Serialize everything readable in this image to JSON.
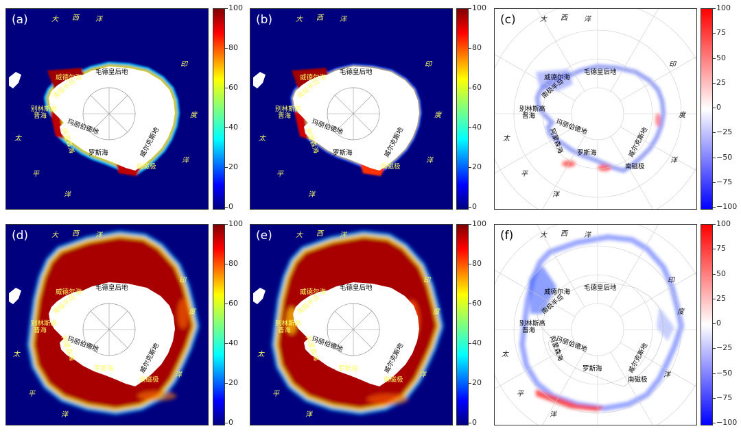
{
  "panels": {
    "a": {
      "label": "(a)",
      "kind": "conc",
      "season": "summer"
    },
    "b": {
      "label": "(b)",
      "kind": "conc",
      "season": "summer"
    },
    "c": {
      "label": "(c)",
      "kind": "diff",
      "season": "summer"
    },
    "d": {
      "label": "(d)",
      "kind": "conc",
      "season": "winter"
    },
    "e": {
      "label": "(e)",
      "kind": "conc",
      "season": "winter"
    },
    "f": {
      "label": "(f)",
      "kind": "diff",
      "season": "winter"
    }
  },
  "place_labels": {
    "maud_land": "毛德皇后地",
    "weddell_sea": "威德尔海",
    "antarctic_peninsula": "南极半岛",
    "bellingshausen_sea": "别林斯高\n晋海",
    "bellingshausen_sea_a": "别林斯高",
    "bellingshausen_sea_b": "晋海",
    "marie_byrd_land": "玛丽伯德地",
    "amundsen_sea": "阿蒙森海",
    "ross_sea": "罗斯海",
    "wilkes_land": "威尔克斯地",
    "south_magnetic_pole": "南磁极"
  },
  "ocean_labels": {
    "atlantic": [
      "大",
      "西",
      "洋"
    ],
    "indian": [
      "印",
      "度",
      "洋"
    ],
    "pacific": [
      "太",
      "平",
      "洋"
    ]
  },
  "colorbars": {
    "concentration": {
      "ticks": [
        "100",
        "80",
        "60",
        "40",
        "20",
        "0"
      ],
      "range": [
        0,
        100
      ],
      "colormap": "jet"
    },
    "difference": {
      "ticks": [
        "100",
        "75",
        "50",
        "25",
        "0",
        "−25",
        "−50",
        "−75",
        "−100"
      ],
      "range": [
        -100,
        100
      ],
      "colormap": "bwr"
    }
  },
  "colors": {
    "ocean_background": "#00007f",
    "land": "#ffffff",
    "ice_high": "#8b0000",
    "label_yellow": "#ffff66",
    "label_dark": "#000000"
  }
}
